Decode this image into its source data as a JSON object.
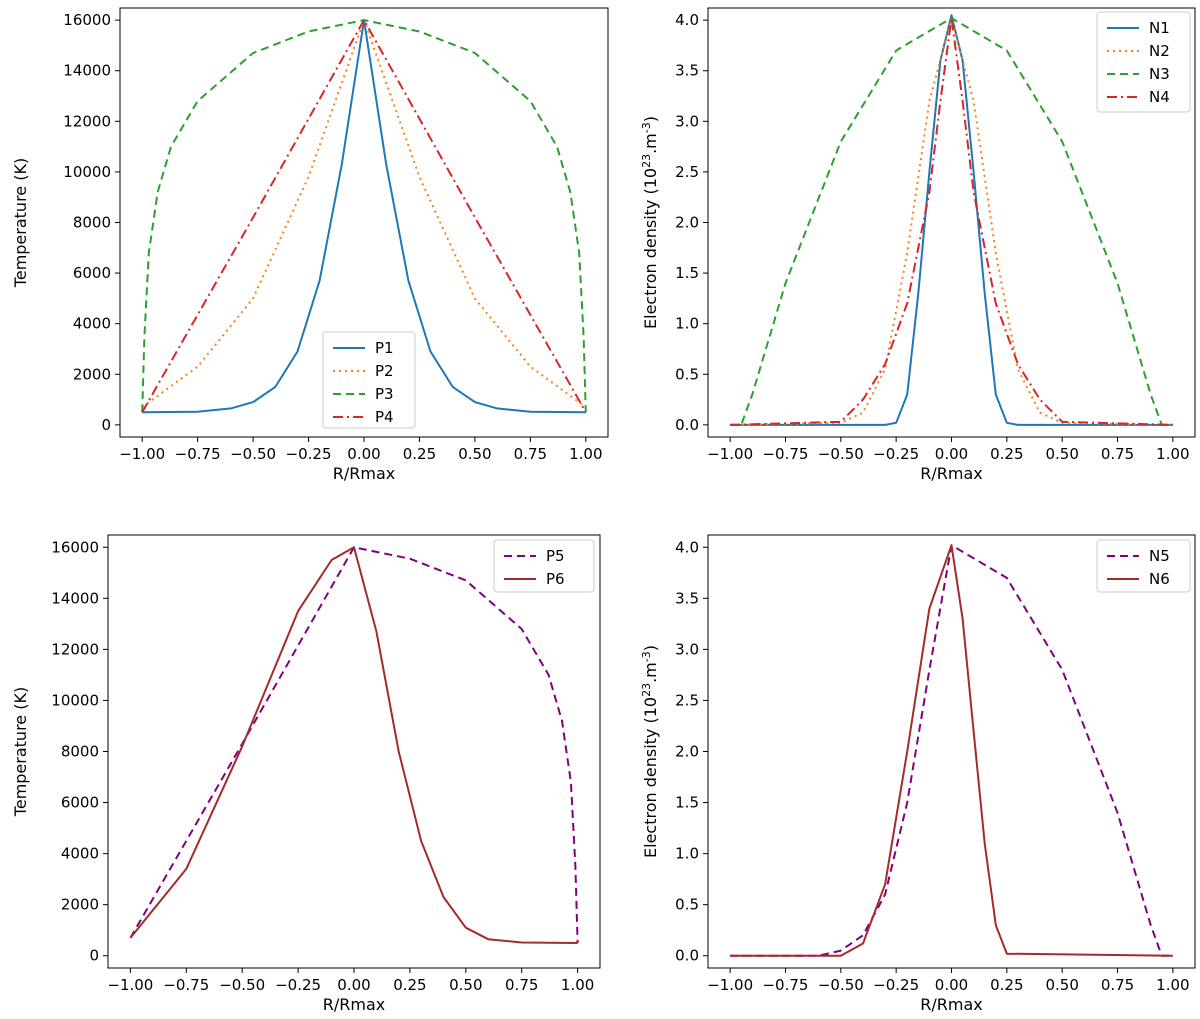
{
  "chart_data": [
    {
      "type": "line",
      "panel": "top-left",
      "xlabel": "R/Rmax",
      "ylabel": "Temperature (K)",
      "xlim": [
        -1.0,
        1.0
      ],
      "ylim": [
        0,
        16000
      ],
      "xticks": [
        -1.0,
        -0.75,
        -0.5,
        -0.25,
        0.0,
        0.25,
        0.5,
        0.75,
        1.0
      ],
      "xtick_labels": [
        "−1.00",
        "−0.75",
        "−0.50",
        "−0.25",
        "0.00",
        "0.25",
        "0.50",
        "0.75",
        "1.00"
      ],
      "yticks": [
        0,
        2000,
        4000,
        6000,
        8000,
        10000,
        12000,
        14000,
        16000
      ],
      "ytick_labels": [
        "0",
        "2000",
        "4000",
        "6000",
        "8000",
        "10000",
        "12000",
        "14000",
        "16000"
      ],
      "legend_position": "bottom-center",
      "series": [
        {
          "name": "P1",
          "color": "#1f77b4",
          "style": "solid",
          "x": [
            -1.0,
            -0.75,
            -0.6,
            -0.5,
            -0.4,
            -0.3,
            -0.2,
            -0.1,
            0.0,
            0.1,
            0.2,
            0.3,
            0.4,
            0.5,
            0.6,
            0.75,
            1.0
          ],
          "y": [
            500,
            520,
            650,
            900,
            1500,
            2900,
            5700,
            10300,
            16000,
            10300,
            5700,
            2900,
            1500,
            900,
            650,
            520,
            500
          ]
        },
        {
          "name": "P2",
          "color": "#ff7f0e",
          "style": "dotted",
          "x": [
            -1.0,
            -0.75,
            -0.5,
            -0.25,
            0.0,
            0.25,
            0.5,
            0.75,
            1.0
          ],
          "y": [
            700,
            2300,
            5000,
            9800,
            16000,
            9800,
            5000,
            2300,
            700
          ]
        },
        {
          "name": "P3",
          "color": "#2ca02c",
          "style": "dashed",
          "x": [
            -1.0,
            -0.99,
            -0.97,
            -0.93,
            -0.87,
            -0.75,
            -0.5,
            -0.25,
            0.0,
            0.25,
            0.5,
            0.75,
            0.87,
            0.93,
            0.97,
            0.99,
            1.0
          ],
          "y": [
            500,
            3500,
            6800,
            9200,
            11000,
            12800,
            14700,
            15550,
            16000,
            15550,
            14700,
            12800,
            11000,
            9200,
            6800,
            3500,
            500
          ]
        },
        {
          "name": "P4",
          "color": "#d62728",
          "style": "dashdot",
          "x": [
            -1.0,
            -0.5,
            0.0,
            0.5,
            1.0
          ],
          "y": [
            500,
            8200,
            16000,
            8200,
            500
          ]
        }
      ]
    },
    {
      "type": "line",
      "panel": "top-right",
      "xlabel": "R/Rmax",
      "ylabel": "Electron density (10",
      "ylabel_exp": "23",
      "ylabel_unit": ".m",
      "ylabel_unit_exp": "-3",
      "ylabel_close": ")",
      "xlim": [
        -1.0,
        1.0
      ],
      "ylim": [
        0,
        4.0
      ],
      "xticks": [
        -1.0,
        -0.75,
        -0.5,
        -0.25,
        0.0,
        0.25,
        0.5,
        0.75,
        1.0
      ],
      "xtick_labels": [
        "−1.00",
        "−0.75",
        "−0.50",
        "−0.25",
        "0.00",
        "0.25",
        "0.50",
        "0.75",
        "1.00"
      ],
      "yticks": [
        0.0,
        0.5,
        1.0,
        1.5,
        2.0,
        2.5,
        3.0,
        3.5,
        4.0
      ],
      "ytick_labels": [
        "0.0",
        "0.5",
        "1.0",
        "1.5",
        "2.0",
        "2.5",
        "3.0",
        "3.5",
        "4.0"
      ],
      "legend_position": "top-right",
      "series": [
        {
          "name": "N1",
          "color": "#1f77b4",
          "style": "solid",
          "x": [
            -1.0,
            -0.3,
            -0.25,
            -0.2,
            -0.15,
            -0.1,
            -0.05,
            0.0,
            0.05,
            0.1,
            0.15,
            0.2,
            0.25,
            0.3,
            1.0
          ],
          "y": [
            0,
            0,
            0.02,
            0.3,
            1.3,
            2.5,
            3.6,
            4.05,
            3.6,
            2.5,
            1.3,
            0.3,
            0.02,
            0,
            0
          ]
        },
        {
          "name": "N2",
          "color": "#ff7f0e",
          "style": "dotted",
          "x": [
            -1.0,
            -0.5,
            -0.4,
            -0.3,
            -0.2,
            -0.1,
            0.0,
            0.1,
            0.2,
            0.3,
            0.4,
            0.5,
            1.0
          ],
          "y": [
            0,
            0.02,
            0.12,
            0.55,
            1.7,
            3.2,
            4.02,
            3.2,
            1.7,
            0.55,
            0.12,
            0.02,
            0
          ]
        },
        {
          "name": "N3",
          "color": "#2ca02c",
          "style": "dashed",
          "x": [
            -1.0,
            -0.95,
            -0.9,
            -0.75,
            -0.5,
            -0.25,
            0.0,
            0.25,
            0.5,
            0.75,
            0.9,
            0.95,
            1.0
          ],
          "y": [
            0,
            0,
            0.3,
            1.4,
            2.8,
            3.7,
            4.02,
            3.7,
            2.8,
            1.4,
            0.3,
            0,
            0
          ]
        },
        {
          "name": "N4",
          "color": "#d62728",
          "style": "dashdot",
          "x": [
            -1.0,
            -0.5,
            -0.4,
            -0.3,
            -0.2,
            -0.1,
            -0.05,
            0.0,
            0.05,
            0.1,
            0.2,
            0.3,
            0.4,
            0.5,
            1.0
          ],
          "y": [
            0,
            0.03,
            0.25,
            0.6,
            1.2,
            2.3,
            3.2,
            4.02,
            3.2,
            2.3,
            1.2,
            0.6,
            0.25,
            0.03,
            0
          ]
        }
      ]
    },
    {
      "type": "line",
      "panel": "bottom-left",
      "xlabel": "R/Rmax",
      "ylabel": "Temperature (K)",
      "xlim": [
        -1.0,
        1.0
      ],
      "ylim": [
        0,
        16000
      ],
      "xticks": [
        -1.0,
        -0.75,
        -0.5,
        -0.25,
        0.0,
        0.25,
        0.5,
        0.75,
        1.0
      ],
      "xtick_labels": [
        "−1.00",
        "−0.75",
        "−0.50",
        "−0.25",
        "0.00",
        "0.25",
        "0.50",
        "0.75",
        "1.00"
      ],
      "yticks": [
        0,
        2000,
        4000,
        6000,
        8000,
        10000,
        12000,
        14000,
        16000
      ],
      "ytick_labels": [
        "0",
        "2000",
        "4000",
        "6000",
        "8000",
        "10000",
        "12000",
        "14000",
        "16000"
      ],
      "legend_position": "top-right",
      "series": [
        {
          "name": "P5",
          "color": "#800080",
          "style": "dashed",
          "x": [
            -1.0,
            -0.5,
            0.0,
            0.25,
            0.5,
            0.75,
            0.87,
            0.93,
            0.97,
            0.99,
            1.0
          ],
          "y": [
            700,
            8300,
            16000,
            15550,
            14700,
            12800,
            11000,
            9200,
            6800,
            3500,
            500
          ]
        },
        {
          "name": "P6",
          "color": "#a52a2a",
          "style": "solid",
          "x": [
            -1.0,
            -0.75,
            -0.5,
            -0.25,
            -0.1,
            0.0,
            0.1,
            0.2,
            0.3,
            0.4,
            0.5,
            0.6,
            0.75,
            1.0
          ],
          "y": [
            700,
            3400,
            8200,
            13500,
            15500,
            16000,
            12700,
            8000,
            4500,
            2300,
            1100,
            650,
            520,
            500
          ]
        }
      ]
    },
    {
      "type": "line",
      "panel": "bottom-right",
      "xlabel": "R/Rmax",
      "ylabel": "Electron density (10",
      "ylabel_exp": "23",
      "ylabel_unit": ".m",
      "ylabel_unit_exp": "-3",
      "ylabel_close": ")",
      "xlim": [
        -1.0,
        1.0
      ],
      "ylim": [
        0,
        4.0
      ],
      "xticks": [
        -1.0,
        -0.75,
        -0.5,
        -0.25,
        0.0,
        0.25,
        0.5,
        0.75,
        1.0
      ],
      "xtick_labels": [
        "−1.00",
        "−0.75",
        "−0.50",
        "−0.25",
        "0.00",
        "0.25",
        "0.50",
        "0.75",
        "1.00"
      ],
      "yticks": [
        0.0,
        0.5,
        1.0,
        1.5,
        2.0,
        2.5,
        3.0,
        3.5,
        4.0
      ],
      "ytick_labels": [
        "0.0",
        "0.5",
        "1.0",
        "1.5",
        "2.0",
        "2.5",
        "3.0",
        "3.5",
        "4.0"
      ],
      "legend_position": "top-right",
      "series": [
        {
          "name": "N5",
          "color": "#800080",
          "style": "dashed",
          "x": [
            -1.0,
            -0.6,
            -0.5,
            -0.4,
            -0.3,
            -0.2,
            -0.1,
            0.0,
            0.25,
            0.5,
            0.75,
            0.9,
            0.95,
            1.0
          ],
          "y": [
            0,
            0,
            0.05,
            0.2,
            0.6,
            1.5,
            2.8,
            4.02,
            3.7,
            2.8,
            1.4,
            0.3,
            0,
            0
          ]
        },
        {
          "name": "N6",
          "color": "#a52a2a",
          "style": "solid",
          "x": [
            -1.0,
            -0.5,
            -0.4,
            -0.3,
            -0.2,
            -0.1,
            0.0,
            0.05,
            0.1,
            0.15,
            0.2,
            0.25,
            1.0
          ],
          "y": [
            0,
            0,
            0.12,
            0.7,
            2.0,
            3.4,
            4.02,
            3.3,
            2.2,
            1.1,
            0.3,
            0.02,
            0
          ]
        }
      ]
    }
  ]
}
